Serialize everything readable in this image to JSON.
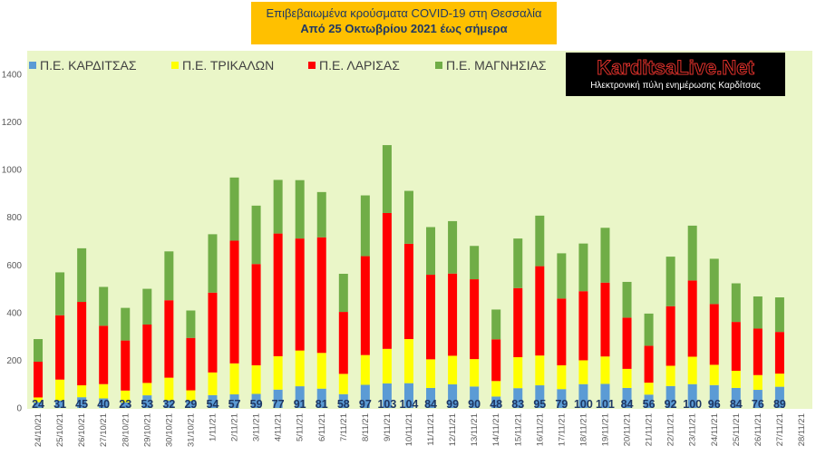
{
  "title": {
    "line1": "Επιβεβαιωμένα κρούσματα COVID-19 στη Θεσσαλία",
    "line2": "Από 25 Οκτωβρίου 2021 έως σήμερα"
  },
  "logo": {
    "name": "KarditsaLive.Net",
    "tagline": "Ηλεκτρονική πύλη ενημέρωσης Καρδίτσας"
  },
  "colors": {
    "plot_bg": "#eaf6c8",
    "karditsa": "#5b9bd5",
    "trikala": "#ffff00",
    "larisa": "#ff0000",
    "magnisia": "#70ad47",
    "label": "#1f3864"
  },
  "chart_data": {
    "type": "bar",
    "stacked": true,
    "title": "Επιβεβαιωμένα κρούσματα COVID-19 στη Θεσσαλία",
    "subtitle": "Από 25 Οκτωβρίου 2021 έως σήμερα",
    "xlabel": "",
    "ylabel": "",
    "ylim": [
      0,
      1400
    ],
    "yticks": [
      0,
      200,
      400,
      600,
      800,
      1000,
      1200,
      1400
    ],
    "grid": false,
    "legend_position": "top-left",
    "categories": [
      "24/10/21",
      "25/10/21",
      "26/10/21",
      "27/10/21",
      "28/10/21",
      "29/10/21",
      "30/10/21",
      "31/10/21",
      "1/11/21",
      "2/11/21",
      "3/11/21",
      "4/11/21",
      "5/11/21",
      "6/11/21",
      "7/11/21",
      "8/11/21",
      "9/11/21",
      "10/11/21",
      "11/11/21",
      "12/11/21",
      "13/11/21",
      "14/11/21",
      "15/11/21",
      "16/11/21",
      "17/11/21",
      "18/11/21",
      "19/11/21",
      "20/11/21",
      "21/11/21",
      "22/11/21",
      "23/11/21",
      "24/11/21",
      "25/11/21",
      "26/11/21",
      "27/11/21",
      "28/11/21"
    ],
    "series": [
      {
        "name": "Π.Ε. ΚΑΡΔΙΤΣΑΣ",
        "color": "#5b9bd5",
        "values": [
          24,
          31,
          45,
          40,
          23,
          53,
          32,
          29,
          54,
          57,
          59,
          77,
          91,
          81,
          58,
          97,
          103,
          104,
          84,
          99,
          90,
          48,
          83,
          95,
          79,
          100,
          101,
          84,
          56,
          92,
          100,
          96,
          84,
          76,
          89,
          null
        ]
      },
      {
        "name": "Π.Ε. ΤΡΙΚΑΛΩΝ",
        "color": "#ffff00",
        "values": [
          20,
          88,
          50,
          60,
          50,
          52,
          95,
          45,
          95,
          130,
          120,
          140,
          150,
          150,
          85,
          125,
          145,
          185,
          120,
          120,
          115,
          65,
          130,
          125,
          100,
          100,
          115,
          80,
          50,
          85,
          115,
          85,
          72,
          62,
          55,
          null
        ]
      },
      {
        "name": "Π.Ε. ΛΑΡΙΣΑΣ",
        "color": "#ff0000",
        "values": [
          150,
          270,
          350,
          245,
          210,
          245,
          325,
          220,
          335,
          515,
          425,
          515,
          470,
          485,
          260,
          415,
          570,
          400,
          355,
          345,
          335,
          175,
          290,
          375,
          280,
          290,
          310,
          215,
          155,
          250,
          320,
          255,
          205,
          195,
          175,
          null
        ]
      },
      {
        "name": "Π.Ε. ΜΑΓΝΗΣΙΑΣ",
        "color": "#70ad47",
        "values": [
          95,
          180,
          225,
          163,
          137,
          150,
          205,
          115,
          245,
          265,
          245,
          225,
          245,
          190,
          160,
          255,
          285,
          222,
          200,
          220,
          140,
          125,
          208,
          212,
          190,
          200,
          230,
          150,
          135,
          208,
          230,
          190,
          162,
          135,
          145,
          null
        ]
      }
    ],
    "data_labels_series": "Π.Ε. ΚΑΡΔΙΤΣΑΣ"
  }
}
